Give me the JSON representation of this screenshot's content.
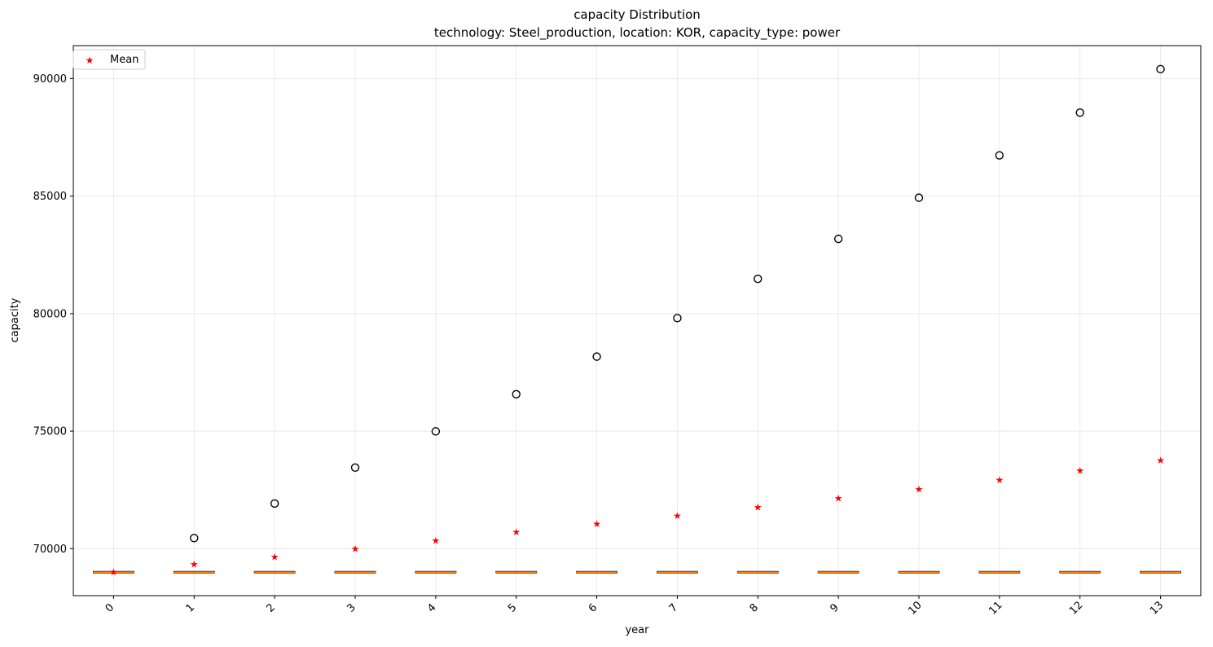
{
  "chart_data": {
    "type": "box",
    "title": "capacity Distribution",
    "subtitle": "technology: Steel_production, location: KOR, capacity_type: power",
    "xlabel": "year",
    "ylabel": "capacity",
    "categories": [
      "0",
      "1",
      "2",
      "3",
      "4",
      "5",
      "6",
      "7",
      "8",
      "9",
      "10",
      "11",
      "12",
      "13"
    ],
    "ylim": [
      68000,
      91400
    ],
    "yticks": [
      70000,
      75000,
      80000,
      85000,
      90000
    ],
    "grid": true,
    "legend": {
      "placement": "top-left",
      "entries": [
        "Mean"
      ]
    },
    "median": [
      69000,
      69000,
      69000,
      69000,
      69000,
      69000,
      69000,
      69000,
      69000,
      69000,
      69000,
      69000,
      69000,
      69000
    ],
    "q1": [
      69000,
      69000,
      69000,
      69000,
      69000,
      69000,
      69000,
      69000,
      69000,
      69000,
      69000,
      69000,
      69000,
      69000
    ],
    "q3": [
      69000,
      69000,
      69000,
      69000,
      69000,
      69000,
      69000,
      69000,
      69000,
      69000,
      69000,
      69000,
      69000,
      69000
    ],
    "means": [
      69000,
      69330,
      69650,
      70000,
      70340,
      70700,
      71050,
      71400,
      71770,
      72150,
      72530,
      72920,
      73330,
      73750
    ],
    "outliers": [
      null,
      70450,
      71920,
      73450,
      74990,
      76570,
      78170,
      79810,
      81480,
      83180,
      84930,
      86730,
      88550,
      90400
    ],
    "colors": {
      "mean": "#ff0000",
      "box": "#000000",
      "median": "#ff7f0e",
      "outlier": "#000000",
      "grid": "#e6e6e6"
    }
  }
}
